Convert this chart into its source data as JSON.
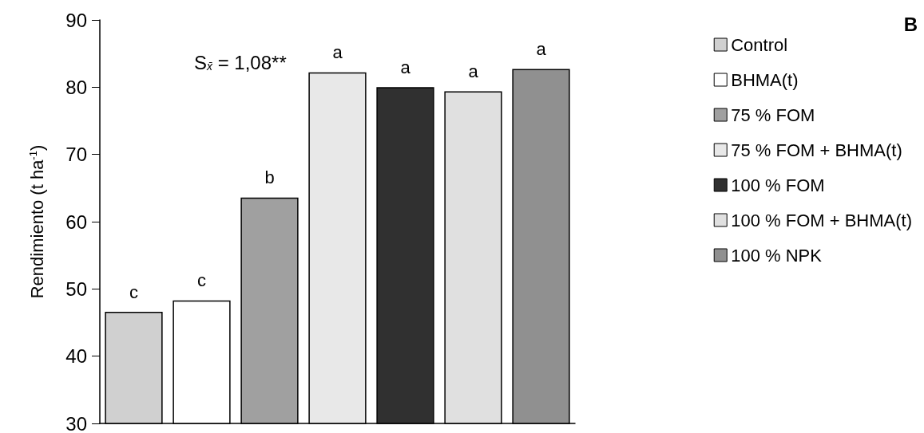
{
  "chart_data": {
    "type": "bar",
    "ylabel": "Rendimiento (t ha$^{-1}$)",
    "categories": [
      null,
      null,
      null,
      null,
      null,
      null,
      null
    ],
    "series": [
      {
        "name": "Control",
        "color": "#d0d0d0",
        "values": [
          46.6,
          null,
          null,
          null,
          null,
          null,
          null
        ],
        "value_labels": [
          "c",
          null,
          null,
          null,
          null,
          null,
          null
        ]
      },
      {
        "name": "BHMA(t)",
        "color": "#ffffff",
        "values": [
          null,
          48.3,
          null,
          null,
          null,
          null,
          null
        ],
        "value_labels": [
          null,
          "c",
          null,
          null,
          null,
          null,
          null
        ]
      },
      {
        "name": "75 % FOM",
        "color": "#a0a0a0",
        "values": [
          null,
          null,
          63.6,
          null,
          null,
          null,
          null
        ],
        "value_labels": [
          null,
          null,
          "b",
          null,
          null,
          null,
          null
        ]
      },
      {
        "name": "75 % FOM + BHMA(t)",
        "color": "#e8e8e8",
        "values": [
          null,
          null,
          null,
          82.2,
          null,
          null,
          null
        ],
        "value_labels": [
          null,
          null,
          null,
          "a",
          null,
          null,
          null
        ]
      },
      {
        "name": "100 % FOM",
        "color": "#303030",
        "values": [
          null,
          null,
          null,
          null,
          80.0,
          null,
          null
        ],
        "value_labels": [
          null,
          null,
          null,
          null,
          "a",
          null,
          null
        ]
      },
      {
        "name": "100 % FOM + BHMA(t)",
        "color": "#e0e0e0",
        "values": [
          null,
          null,
          null,
          null,
          null,
          79.4,
          null
        ],
        "value_labels": [
          null,
          null,
          null,
          null,
          null,
          "a",
          null
        ]
      },
      {
        "name": "100 % NPK",
        "color": "#909090",
        "values": [
          null,
          null,
          null,
          null,
          null,
          null,
          82.7
        ],
        "value_labels": [
          null,
          null,
          null,
          null,
          null,
          null,
          "a"
        ]
      }
    ],
    "ylim": [
      30,
      90
    ],
    "yticks": [
      30,
      40,
      50,
      60,
      70,
      80,
      90
    ],
    "grid": false,
    "legend": "right",
    "annotations": [
      "S$_{x̄}$ = 1,08**",
      "B"
    ]
  }
}
